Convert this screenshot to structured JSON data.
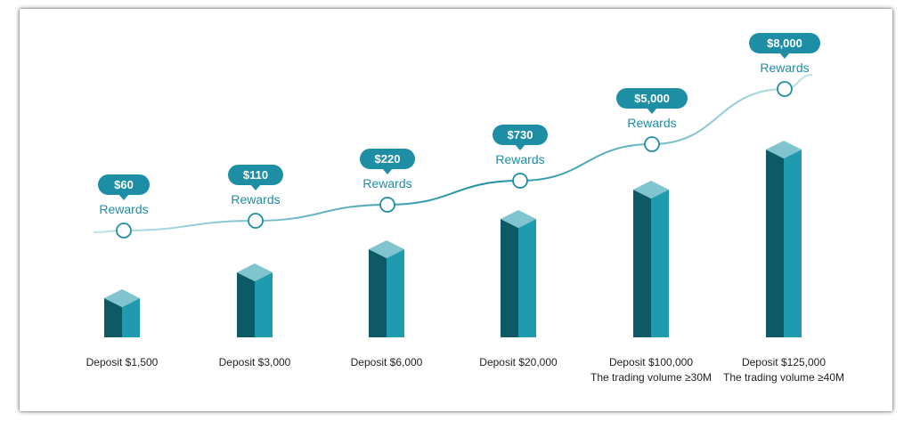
{
  "chart_data": {
    "type": "bar",
    "categories": [
      "Deposit $1,500",
      "Deposit $3,000",
      "Deposit $6,000",
      "Deposit $20,000",
      "Deposit $100,000",
      "Deposit $125,000"
    ],
    "sublabels": [
      "",
      "",
      "",
      "",
      "The trading volume ≥30M",
      "The trading volume ≥40M"
    ],
    "reward_labels": [
      "$60",
      "$110",
      "$220",
      "$730",
      "$5,000",
      "$8,000"
    ],
    "reward_caption": "Rewards",
    "values": [
      60,
      110,
      220,
      730,
      5000,
      8000
    ],
    "colors": {
      "bar_front": "#1f9aaf",
      "bar_side": "#0c5a66",
      "bar_top": "#7fc4cf",
      "badge": "#1d8ea3",
      "curve": "#1d8ea3",
      "label": "#1f1f1f"
    }
  }
}
